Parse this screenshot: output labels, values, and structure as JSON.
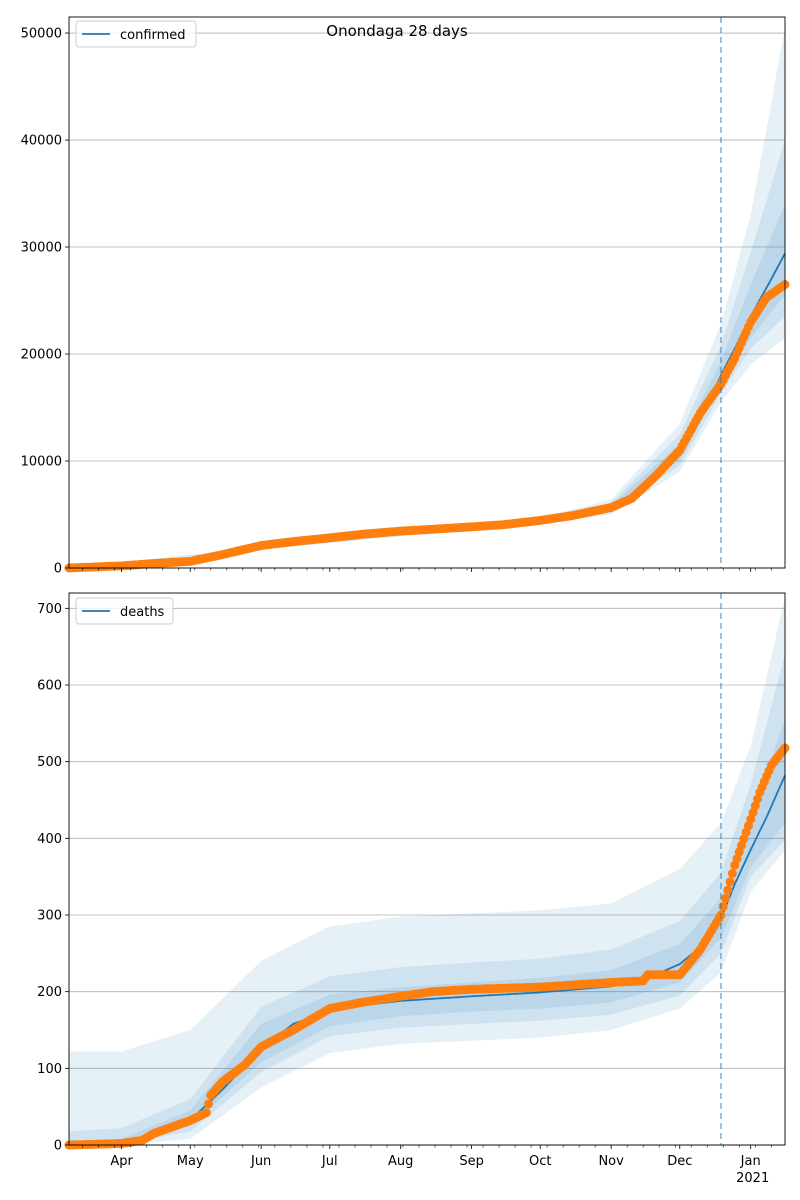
{
  "chart_data": [
    {
      "type": "line",
      "title": "Onondaga 28 days",
      "xlabel": "",
      "ylabel": "",
      "ylim": [
        0,
        51500
      ],
      "yticks": [
        0,
        10000,
        20000,
        30000,
        40000,
        50000
      ],
      "x_tick_labels": [
        "Apr",
        "May",
        "Jun",
        "Jul",
        "Aug",
        "Sep",
        "Oct",
        "Nov",
        "Dec",
        "Jan"
      ],
      "x_year_label": "2021",
      "grid": "horizontal",
      "legend_placement": "top-left",
      "forecast_start": "2020-12-19",
      "series": [
        {
          "name": "confirmed",
          "kind": "model",
          "points": [
            [
              "2020-03-09",
              0
            ],
            [
              "2020-04-01",
              180
            ],
            [
              "2020-05-01",
              500
            ],
            [
              "2020-05-15",
              1200
            ],
            [
              "2020-06-01",
              2050
            ],
            [
              "2020-06-15",
              2420
            ],
            [
              "2020-07-01",
              2750
            ],
            [
              "2020-08-01",
              3450
            ],
            [
              "2020-09-01",
              3900
            ],
            [
              "2020-10-01",
              4450
            ],
            [
              "2020-10-15",
              4850
            ],
            [
              "2020-11-01",
              5600
            ],
            [
              "2020-11-10",
              6500
            ],
            [
              "2020-11-20",
              8200
            ],
            [
              "2020-12-01",
              10700
            ],
            [
              "2020-12-10",
              14000
            ],
            [
              "2020-12-19",
              18000
            ],
            [
              "2020-12-25",
              20500
            ],
            [
              "2021-01-01",
              23500
            ],
            [
              "2021-01-10",
              27000
            ],
            [
              "2021-01-16",
              29400
            ]
          ]
        },
        {
          "name": "",
          "kind": "observed",
          "points": [
            [
              "2020-03-09",
              0
            ],
            [
              "2020-04-01",
              200
            ],
            [
              "2020-04-15",
              420
            ],
            [
              "2020-05-01",
              620
            ],
            [
              "2020-05-15",
              1250
            ],
            [
              "2020-06-01",
              2100
            ],
            [
              "2020-06-15",
              2470
            ],
            [
              "2020-07-01",
              2820
            ],
            [
              "2020-07-15",
              3150
            ],
            [
              "2020-08-01",
              3450
            ],
            [
              "2020-08-15",
              3620
            ],
            [
              "2020-09-01",
              3850
            ],
            [
              "2020-09-15",
              4050
            ],
            [
              "2020-10-01",
              4450
            ],
            [
              "2020-10-15",
              4900
            ],
            [
              "2020-11-01",
              5650
            ],
            [
              "2020-11-10",
              6500
            ],
            [
              "2020-11-20",
              8500
            ],
            [
              "2020-12-01",
              11000
            ],
            [
              "2020-12-10",
              14500
            ],
            [
              "2020-12-19",
              17200
            ],
            [
              "2020-12-25",
              19600
            ],
            [
              "2021-01-01",
              23000
            ],
            [
              "2021-01-08",
              25300
            ],
            [
              "2021-01-16",
              26500
            ]
          ]
        }
      ],
      "bands": [
        {
          "upper": [
            [
              "2020-03-09",
              0
            ],
            [
              "2020-10-01",
              4700
            ],
            [
              "2020-11-01",
              6400
            ],
            [
              "2020-12-01",
              13500
            ],
            [
              "2020-12-19",
              22800
            ],
            [
              "2021-01-01",
              33000
            ],
            [
              "2021-01-16",
              50500
            ]
          ],
          "lower": [
            [
              "2020-03-09",
              0
            ],
            [
              "2020-10-01",
              4200
            ],
            [
              "2020-11-01",
              5000
            ],
            [
              "2020-12-01",
              9000
            ],
            [
              "2020-12-19",
              15500
            ],
            [
              "2021-01-01",
              19000
            ],
            [
              "2021-01-16",
              21500
            ]
          ]
        },
        {
          "upper": [
            [
              "2020-03-09",
              0
            ],
            [
              "2020-10-01",
              4600
            ],
            [
              "2020-11-01",
              6100
            ],
            [
              "2020-12-01",
              12500
            ],
            [
              "2020-12-19",
              20800
            ],
            [
              "2021-01-01",
              29500
            ],
            [
              "2021-01-16",
              40000
            ]
          ],
          "lower": [
            [
              "2020-03-09",
              0
            ],
            [
              "2020-10-01",
              4300
            ],
            [
              "2020-11-01",
              5200
            ],
            [
              "2020-12-01",
              9600
            ],
            [
              "2020-12-19",
              16300
            ],
            [
              "2021-01-01",
              20500
            ],
            [
              "2021-01-16",
              23500
            ]
          ]
        },
        {
          "upper": [
            [
              "2020-03-09",
              0
            ],
            [
              "2020-10-01",
              4520
            ],
            [
              "2020-11-01",
              5850
            ],
            [
              "2020-12-01",
              11600
            ],
            [
              "2020-12-19",
              19300
            ],
            [
              "2021-01-01",
              26500
            ],
            [
              "2021-01-16",
              34000
            ]
          ],
          "lower": [
            [
              "2020-03-09",
              0
            ],
            [
              "2020-10-01",
              4380
            ],
            [
              "2020-11-01",
              5400
            ],
            [
              "2020-12-01",
              10100
            ],
            [
              "2020-12-19",
              17000
            ],
            [
              "2021-01-01",
              21500
            ],
            [
              "2021-01-16",
              25500
            ]
          ]
        }
      ]
    },
    {
      "type": "line",
      "title": "",
      "xlabel": "",
      "ylabel": "",
      "ylim": [
        0,
        720
      ],
      "yticks": [
        0,
        100,
        200,
        300,
        400,
        500,
        600,
        700
      ],
      "x_tick_labels": [
        "Apr",
        "May",
        "Jun",
        "Jul",
        "Aug",
        "Sep",
        "Oct",
        "Nov",
        "Dec",
        "Jan"
      ],
      "x_year_label": "2021",
      "grid": "horizontal",
      "legend_placement": "top-left",
      "forecast_start": "2020-12-19",
      "series": [
        {
          "name": "deaths",
          "kind": "model",
          "points": [
            [
              "2020-03-09",
              0
            ],
            [
              "2020-04-01",
              2
            ],
            [
              "2020-04-15",
              12
            ],
            [
              "2020-05-01",
              32
            ],
            [
              "2020-05-15",
              72
            ],
            [
              "2020-06-01",
              125
            ],
            [
              "2020-06-15",
              158
            ],
            [
              "2020-07-01",
              174
            ],
            [
              "2020-07-15",
              182
            ],
            [
              "2020-08-01",
              188
            ],
            [
              "2020-09-01",
              194
            ],
            [
              "2020-10-01",
              199
            ],
            [
              "2020-11-01",
              207
            ],
            [
              "2020-11-15",
              215
            ],
            [
              "2020-12-01",
              236
            ],
            [
              "2020-12-10",
              258
            ],
            [
              "2020-12-19",
              295
            ],
            [
              "2020-12-25",
              340
            ],
            [
              "2021-01-01",
              385
            ],
            [
              "2021-01-08",
              428
            ],
            [
              "2021-01-16",
              482
            ]
          ]
        },
        {
          "name": "",
          "kind": "observed",
          "points": [
            [
              "2020-03-09",
              0
            ],
            [
              "2020-04-01",
              2
            ],
            [
              "2020-04-10",
              6
            ],
            [
              "2020-04-15",
              15
            ],
            [
              "2020-05-01",
              32
            ],
            [
              "2020-05-08",
              42
            ],
            [
              "2020-05-10",
              65
            ],
            [
              "2020-05-15",
              82
            ],
            [
              "2020-05-25",
              105
            ],
            [
              "2020-06-01",
              128
            ],
            [
              "2020-06-15",
              150
            ],
            [
              "2020-07-01",
              178
            ],
            [
              "2020-07-15",
              186
            ],
            [
              "2020-08-01",
              194
            ],
            [
              "2020-08-15",
              200
            ],
            [
              "2020-09-01",
              203
            ],
            [
              "2020-10-01",
              206
            ],
            [
              "2020-11-01",
              212
            ],
            [
              "2020-11-15",
              214
            ],
            [
              "2020-11-17",
              222
            ],
            [
              "2020-12-01",
              222
            ],
            [
              "2020-12-10",
              255
            ],
            [
              "2020-12-19",
              300
            ],
            [
              "2020-12-25",
              365
            ],
            [
              "2021-01-01",
              425
            ],
            [
              "2021-01-05",
              460
            ],
            [
              "2021-01-10",
              495
            ],
            [
              "2021-01-16",
              518
            ]
          ]
        }
      ],
      "bands": [
        {
          "upper": [
            [
              "2020-03-09",
              122
            ],
            [
              "2020-04-01",
              122
            ],
            [
              "2020-05-01",
              150
            ],
            [
              "2020-06-01",
              240
            ],
            [
              "2020-07-01",
              285
            ],
            [
              "2020-08-01",
              298
            ],
            [
              "2020-09-01",
              302
            ],
            [
              "2020-10-01",
              306
            ],
            [
              "2020-11-01",
              315
            ],
            [
              "2020-12-01",
              360
            ],
            [
              "2020-12-19",
              420
            ],
            [
              "2021-01-01",
              520
            ],
            [
              "2021-01-16",
              715
            ]
          ],
          "lower": [
            [
              "2020-03-09",
              0
            ],
            [
              "2020-04-01",
              0
            ],
            [
              "2020-05-01",
              8
            ],
            [
              "2020-06-01",
              75
            ],
            [
              "2020-07-01",
              120
            ],
            [
              "2020-08-01",
              132
            ],
            [
              "2020-09-01",
              136
            ],
            [
              "2020-10-01",
              140
            ],
            [
              "2020-11-01",
              150
            ],
            [
              "2020-12-01",
              178
            ],
            [
              "2020-12-19",
              225
            ],
            [
              "2021-01-01",
              330
            ],
            [
              "2021-01-16",
              385
            ]
          ]
        },
        {
          "upper": [
            [
              "2020-03-09",
              18
            ],
            [
              "2020-04-01",
              22
            ],
            [
              "2020-05-01",
              60
            ],
            [
              "2020-06-01",
              180
            ],
            [
              "2020-07-01",
              220
            ],
            [
              "2020-08-01",
              232
            ],
            [
              "2020-09-01",
              238
            ],
            [
              "2020-10-01",
              243
            ],
            [
              "2020-11-01",
              255
            ],
            [
              "2020-12-01",
              292
            ],
            [
              "2020-12-19",
              355
            ],
            [
              "2021-01-01",
              470
            ],
            [
              "2021-01-16",
              640
            ]
          ],
          "lower": [
            [
              "2020-03-09",
              0
            ],
            [
              "2020-04-01",
              0
            ],
            [
              "2020-05-01",
              18
            ],
            [
              "2020-06-01",
              95
            ],
            [
              "2020-07-01",
              142
            ],
            [
              "2020-08-01",
              153
            ],
            [
              "2020-09-01",
              158
            ],
            [
              "2020-10-01",
              162
            ],
            [
              "2020-11-01",
              170
            ],
            [
              "2020-12-01",
              195
            ],
            [
              "2020-12-19",
              250
            ],
            [
              "2021-01-01",
              350
            ],
            [
              "2021-01-16",
              398
            ]
          ]
        },
        {
          "upper": [
            [
              "2020-03-09",
              4
            ],
            [
              "2020-04-01",
              8
            ],
            [
              "2020-05-01",
              45
            ],
            [
              "2020-06-01",
              158
            ],
            [
              "2020-07-01",
              196
            ],
            [
              "2020-08-01",
              206
            ],
            [
              "2020-09-01",
              212
            ],
            [
              "2020-10-01",
              218
            ],
            [
              "2020-11-01",
              228
            ],
            [
              "2020-12-01",
              262
            ],
            [
              "2020-12-19",
              322
            ],
            [
              "2021-01-01",
              430
            ],
            [
              "2021-01-16",
              555
            ]
          ],
          "lower": [
            [
              "2020-03-09",
              0
            ],
            [
              "2020-04-01",
              0
            ],
            [
              "2020-05-01",
              25
            ],
            [
              "2020-06-01",
              108
            ],
            [
              "2020-07-01",
              155
            ],
            [
              "2020-08-01",
              168
            ],
            [
              "2020-09-01",
              174
            ],
            [
              "2020-10-01",
              178
            ],
            [
              "2020-11-01",
              186
            ],
            [
              "2020-12-01",
              212
            ],
            [
              "2020-12-19",
              270
            ],
            [
              "2021-01-01",
              362
            ],
            [
              "2021-01-16",
              420
            ]
          ]
        }
      ]
    }
  ],
  "colors": {
    "model_line": "#1f77b4",
    "observed_points": "#ff7f0e",
    "band_fill": "#1f77b4",
    "forecast_line": "#1f77b4",
    "grid": "#b0b0b0"
  }
}
